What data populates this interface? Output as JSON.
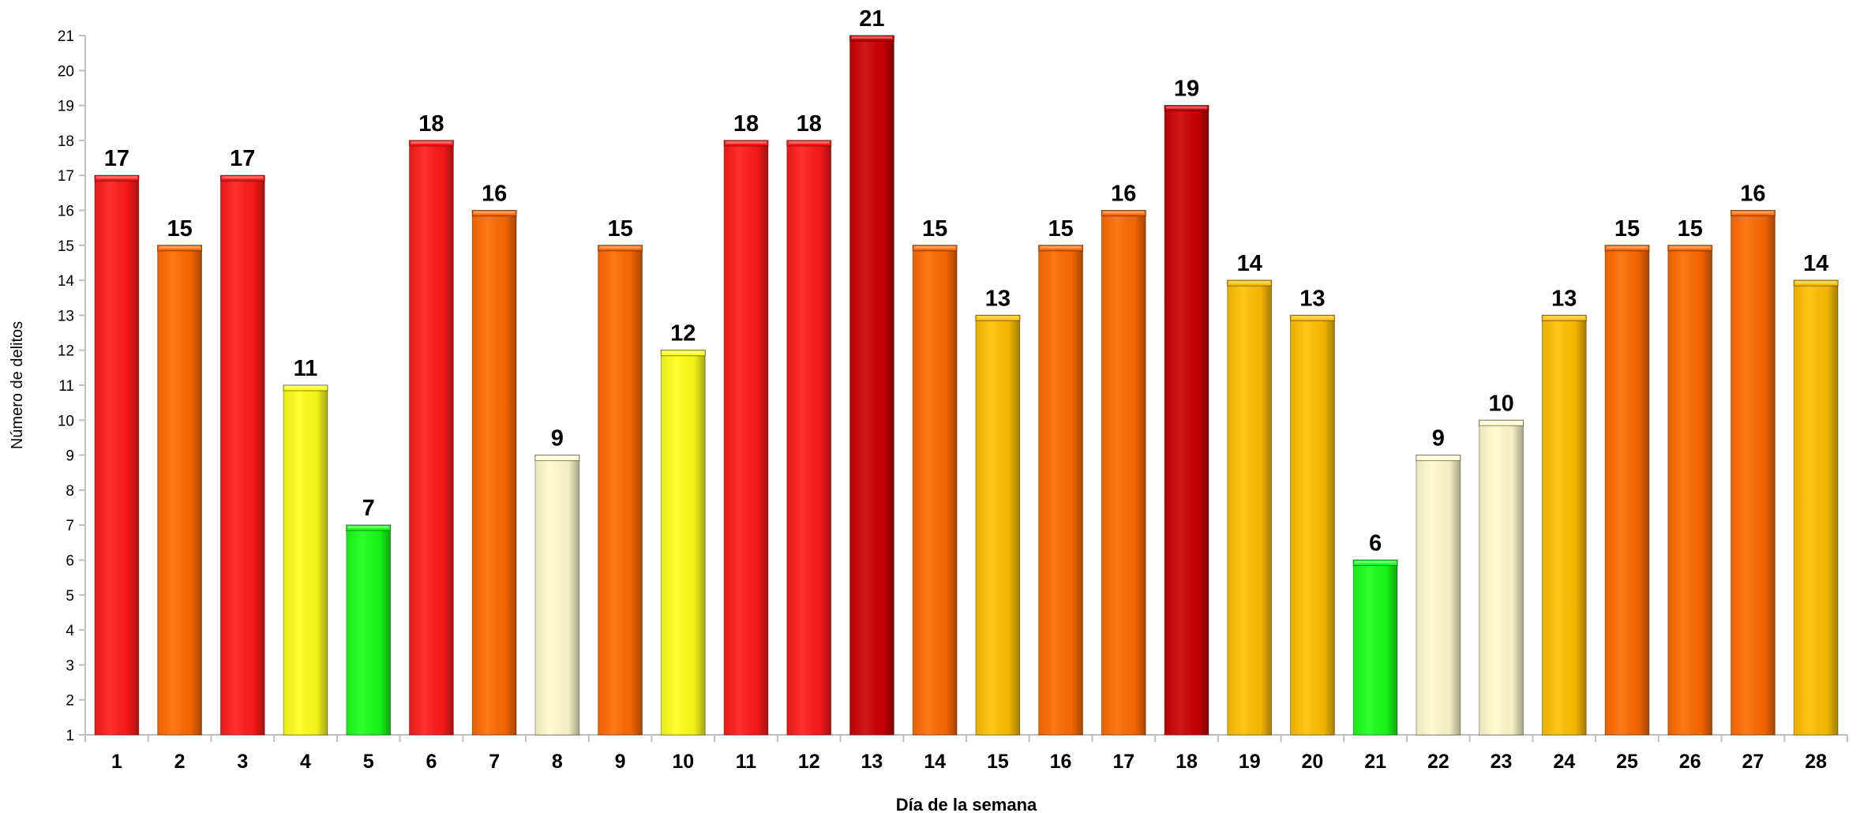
{
  "chart_data": {
    "type": "bar",
    "title": "",
    "xlabel": "Día de la semana",
    "ylabel": "Número de delitos",
    "categories": [
      "1",
      "2",
      "3",
      "4",
      "5",
      "6",
      "7",
      "8",
      "9",
      "10",
      "11",
      "12",
      "13",
      "14",
      "15",
      "16",
      "17",
      "18",
      "19",
      "20",
      "21",
      "22",
      "23",
      "24",
      "25",
      "26",
      "27",
      "28"
    ],
    "values": [
      17,
      15,
      17,
      11,
      7,
      18,
      16,
      9,
      15,
      12,
      18,
      18,
      21,
      15,
      13,
      15,
      16,
      19,
      14,
      13,
      6,
      9,
      10,
      13,
      15,
      15,
      16,
      14
    ],
    "bar_colors": [
      "#ff1a1a",
      "#ff6a00",
      "#ff1a1a",
      "#ffff1a",
      "#19ff19",
      "#ff1a1a",
      "#ff6a00",
      "#fffccc",
      "#ff6a00",
      "#ffff1a",
      "#ff1a1a",
      "#ff1a1a",
      "#cc0000",
      "#ff6a00",
      "#ffbf00",
      "#ff6a00",
      "#ff6a00",
      "#cc0000",
      "#ffbf00",
      "#ffbf00",
      "#19ff19",
      "#fffccc",
      "#fffccc",
      "#ffbf00",
      "#ff6a00",
      "#ff6a00",
      "#ff6a00",
      "#ffbf00"
    ],
    "ylim": [
      1,
      21
    ],
    "yticks": [
      1,
      2,
      3,
      4,
      5,
      6,
      7,
      8,
      9,
      10,
      11,
      12,
      13,
      14,
      15,
      16,
      17,
      18,
      19,
      20,
      21
    ],
    "grid": false,
    "legend": "none",
    "data_labels": true
  }
}
